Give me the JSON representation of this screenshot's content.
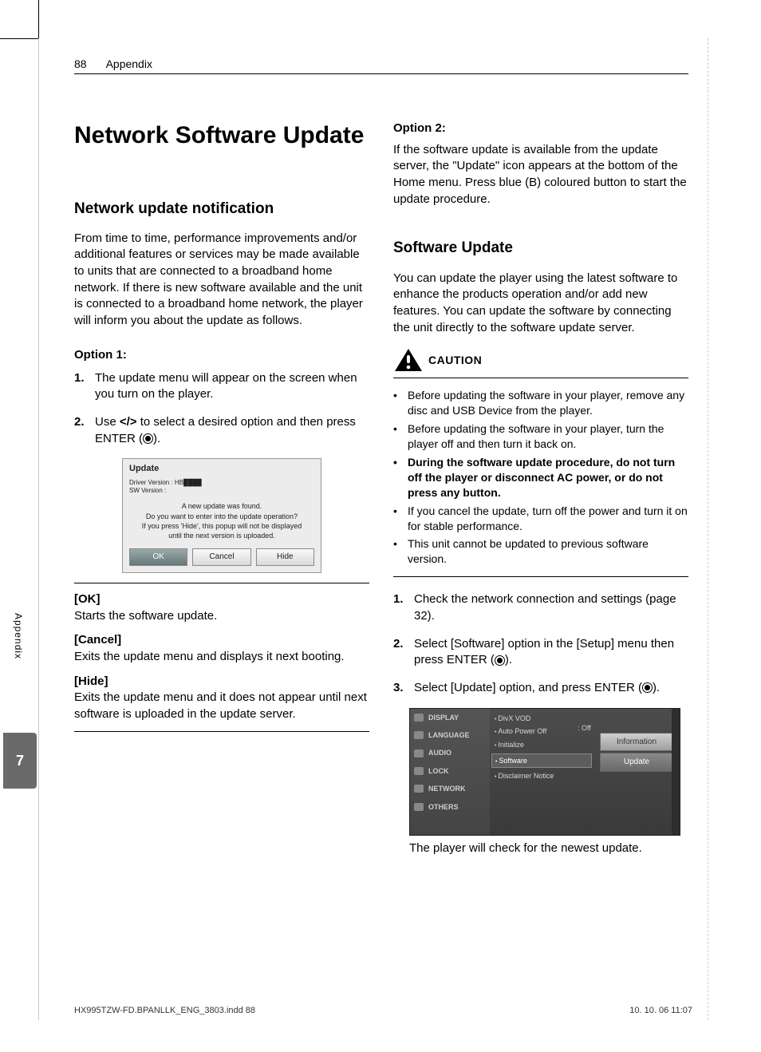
{
  "page": {
    "number": "88",
    "section": "Appendix",
    "side_tab": "Appendix",
    "chapter_tab": "7"
  },
  "col_left": {
    "h1": "Network Software Update",
    "h2": "Network update notification",
    "intro": "From time to time, performance improvements and/or additional features or services may be made available to units that are connected to a broadband home network. If there is new software available and the unit is connected to a broadband home network, the player will inform you about the update as follows.",
    "opt1_label": "Option 1:",
    "opt1_steps": [
      "The update menu will appear on the screen when you turn on the player.",
      "Use </> to select a desired option and then press ENTER ( )."
    ],
    "dialog": {
      "title": "Update",
      "meta1": "Driver Version : HB████",
      "meta2": "SW Version :",
      "msg1": "A new update was found.",
      "msg2": "Do you want to enter into the update operation?",
      "msg3": "If you press 'Hide', this popup will not be displayed",
      "msg4": "until the next version is uploaded.",
      "ok": "OK",
      "cancel": "Cancel",
      "hide": "Hide"
    },
    "defs": [
      {
        "k": "[OK]",
        "v": "Starts the software update."
      },
      {
        "k": "[Cancel]",
        "v": "Exits the update menu and displays it next booting."
      },
      {
        "k": "[Hide]",
        "v": "Exits the update menu and it does not appear until next software is uploaded in the update server."
      }
    ]
  },
  "col_right": {
    "opt2_label": "Option 2:",
    "opt2_text": "If the software update is available from the update server, the \"Update\" icon appears at the bottom of the Home menu. Press blue (B) coloured button to start the update procedure.",
    "h2": "Software Update",
    "sw_text": "You can update the player using the latest software to enhance the products operation and/or add new features. You can update the software by connecting the unit directly to the software update server.",
    "caution_label": "CAUTION",
    "cautions": [
      {
        "t": "Before updating the software in your player, remove any disc and USB Device from the player.",
        "b": false
      },
      {
        "t": "Before updating the software in your player, turn the player off and then turn it back on.",
        "b": false
      },
      {
        "t": "During the software update procedure, do not turn off the player or disconnect AC power, or do not press any button.",
        "b": true
      },
      {
        "t": "If you cancel the update, turn off the power and turn it on for stable performance.",
        "b": false
      },
      {
        "t": "This unit cannot be updated to previous software version.",
        "b": false
      }
    ],
    "steps": [
      "Check the network connection and settings (page 32).",
      "Select [Software] option in the [Setup] menu then press ENTER ( ).",
      "Select [Update] option, and press ENTER ( )."
    ],
    "menu": {
      "left": [
        "DISPLAY",
        "LANGUAGE",
        "AUDIO",
        "LOCK",
        "NETWORK",
        "OTHERS"
      ],
      "mid": [
        "DivX VOD",
        "Auto Power Off",
        "Initialize",
        "Software",
        "Disclaimer Notice"
      ],
      "mid_sel_index": 3,
      "off_value": ": Off",
      "right": [
        "Information",
        "Update"
      ],
      "right_sel_index": 1
    },
    "after_menu": "The player will check for the newest update."
  },
  "footer": {
    "left": "HX995TZW-FD.BPANLLK_ENG_3803.indd   88",
    "right": "10. 10. 06      11:07"
  },
  "colors": {
    "tab_bg": "#6a6a6a",
    "rule": "#000000",
    "menu_bg": "#404040",
    "dialog_bg": "#ececec"
  }
}
